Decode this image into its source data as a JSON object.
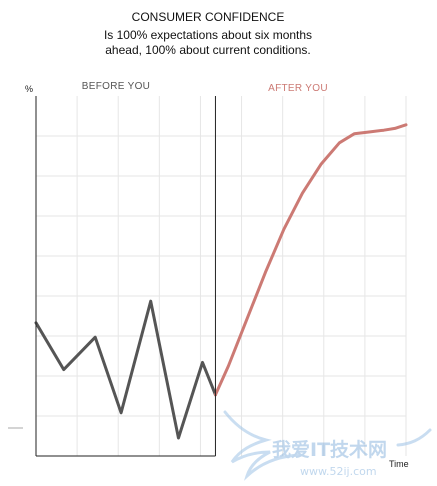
{
  "chart_data": {
    "type": "line",
    "title": "CONSUMER CONFIDENCE",
    "subtitle_lines": [
      "Is 100% expectations about six months",
      "ahead, 100% about current conditions."
    ],
    "ylabel": "%",
    "xlabel": "Time",
    "regions": [
      {
        "name": "before",
        "label": "BEFORE YOU",
        "color": "#555555"
      },
      {
        "name": "after",
        "label": "AFTER YOU",
        "color": "#cc7a74"
      }
    ],
    "xlim": [
      0,
      100
    ],
    "ylim": [
      0,
      100
    ],
    "divider_x": 48.5,
    "grid": true,
    "series": [
      {
        "region": "before",
        "color": "#555555",
        "points": [
          [
            0,
            37
          ],
          [
            7.5,
            24
          ],
          [
            16,
            33
          ],
          [
            23,
            12
          ],
          [
            31,
            43
          ],
          [
            38.5,
            5
          ],
          [
            45,
            26
          ],
          [
            48.5,
            17
          ]
        ]
      },
      {
        "region": "after",
        "color": "#cc7a74",
        "points": [
          [
            48.5,
            17
          ],
          [
            52,
            25
          ],
          [
            57,
            38
          ],
          [
            62,
            51
          ],
          [
            67,
            63
          ],
          [
            72,
            73
          ],
          [
            77,
            81
          ],
          [
            82,
            87
          ],
          [
            86,
            89.5
          ],
          [
            90,
            90
          ],
          [
            94,
            90.5
          ],
          [
            97,
            91
          ],
          [
            100,
            92
          ]
        ]
      }
    ]
  },
  "watermark": {
    "main": "我爱IT技术网",
    "url": "www.52ij.com"
  }
}
